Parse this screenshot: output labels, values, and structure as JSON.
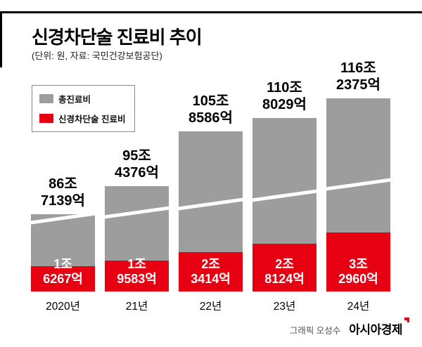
{
  "page": {
    "title": "신경차단술 진료비 추이",
    "subtitle": "(단위: 원, 자료: 국민건강보험공단)"
  },
  "legend": {
    "position": "top-left",
    "items": [
      {
        "label": "총진료비",
        "color": "#9d9d9d"
      },
      {
        "label": "신경차단술 진료비",
        "color": "#e60012"
      }
    ]
  },
  "footer": {
    "credit": "그래픽 오성수",
    "brand": "아시아경제"
  },
  "colors": {
    "total_bar": "#9d9d9d",
    "nerve_bar": "#e60012",
    "rule": "#000000"
  },
  "chart_data": {
    "type": "bar",
    "title": "신경차단술 진료비 추이",
    "unit": "원",
    "source": "국민건강보험공단",
    "axis_break": true,
    "grid": false,
    "legend_position": "top-left",
    "categories": [
      "2020년",
      "21년",
      "22년",
      "23년",
      "24년"
    ],
    "series": [
      {
        "name": "총진료비",
        "unit": "억원",
        "values": [
          867139,
          954376,
          1058586,
          1108029,
          1162375
        ],
        "labels": [
          "86조 7139억",
          "95조 4376억",
          "105조 8586억",
          "110조 8029억",
          "116조 2375억"
        ]
      },
      {
        "name": "신경차단술 진료비",
        "unit": "억원",
        "values": [
          16267,
          19583,
          23414,
          28124,
          32960
        ],
        "labels": [
          "1조 6267억",
          "1조 9583억",
          "2조 3414억",
          "2조 8124억",
          "3조 2960억"
        ]
      }
    ],
    "bars": [
      {
        "category": "2020년",
        "total_line1": "86조",
        "total_line2": "7139억",
        "nerve_line1": "1조",
        "nerve_line2": "6267억",
        "total_h": 110,
        "nerve_h": 36
      },
      {
        "category": "21년",
        "total_line1": "95조",
        "total_line2": "4376억",
        "nerve_line1": "1조",
        "nerve_line2": "9583억",
        "total_h": 150,
        "nerve_h": 44
      },
      {
        "category": "22년",
        "total_line1": "105조",
        "total_line2": "8586억",
        "nerve_line1": "2조",
        "nerve_line2": "3414억",
        "total_h": 228,
        "nerve_h": 56
      },
      {
        "category": "23년",
        "total_line1": "110조",
        "total_line2": "8029억",
        "nerve_line1": "2조",
        "nerve_line2": "8124억",
        "total_h": 247,
        "nerve_h": 68
      },
      {
        "category": "24년",
        "total_line1": "116조",
        "total_line2": "2375억",
        "nerve_line1": "3조",
        "nerve_line2": "2960억",
        "total_h": 275,
        "nerve_h": 84
      }
    ]
  }
}
